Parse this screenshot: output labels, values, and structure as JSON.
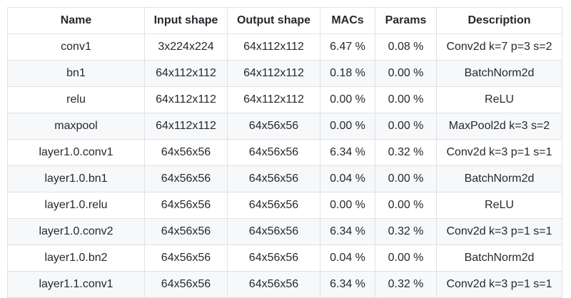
{
  "table": {
    "headers": [
      "Name",
      "Input shape",
      "Output shape",
      "MACs",
      "Params",
      "Description"
    ],
    "rows": [
      [
        "conv1",
        "3x224x224",
        "64x112x112",
        "6.47 %",
        "0.08 %",
        "Conv2d k=7 p=3 s=2"
      ],
      [
        "bn1",
        "64x112x112",
        "64x112x112",
        "0.18 %",
        "0.00 %",
        "BatchNorm2d"
      ],
      [
        "relu",
        "64x112x112",
        "64x112x112",
        "0.00 %",
        "0.00 %",
        "ReLU"
      ],
      [
        "maxpool",
        "64x112x112",
        "64x56x56",
        "0.00 %",
        "0.00 %",
        "MaxPool2d k=3 s=2"
      ],
      [
        "layer1.0.conv1",
        "64x56x56",
        "64x56x56",
        "6.34 %",
        "0.32 %",
        "Conv2d k=3 p=1 s=1"
      ],
      [
        "layer1.0.bn1",
        "64x56x56",
        "64x56x56",
        "0.04 %",
        "0.00 %",
        "BatchNorm2d"
      ],
      [
        "layer1.0.relu",
        "64x56x56",
        "64x56x56",
        "0.00 %",
        "0.00 %",
        "ReLU"
      ],
      [
        "layer1.0.conv2",
        "64x56x56",
        "64x56x56",
        "6.34 %",
        "0.32 %",
        "Conv2d k=3 p=1 s=1"
      ],
      [
        "layer1.0.bn2",
        "64x56x56",
        "64x56x56",
        "0.04 %",
        "0.00 %",
        "BatchNorm2d"
      ],
      [
        "layer1.1.conv1",
        "64x56x56",
        "64x56x56",
        "6.34 %",
        "0.32 %",
        "Conv2d k=3 p=1 s=1"
      ]
    ]
  }
}
